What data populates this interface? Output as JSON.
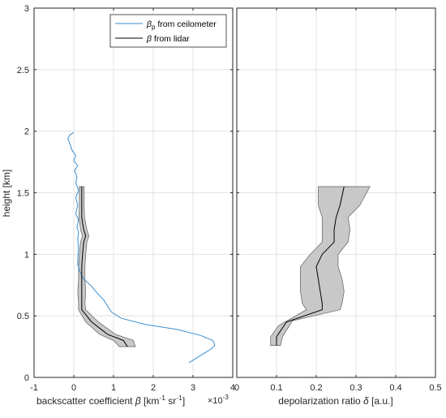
{
  "figure": {
    "y_label": "height [km]"
  },
  "chart_data": [
    {
      "type": "line",
      "xlabel": "backscatter coefficient β [km⁻¹ sr⁻¹]",
      "xlabel_parts": {
        "main": "backscatter coefficient ",
        "beta": "β",
        "units_open": " [km",
        "units_exp1": "-1",
        "units_mid": " sr",
        "units_exp2": "-1",
        "units_close": "]"
      },
      "x_exponent_label": "×10⁻³",
      "x_exponent_parts": {
        "base": "×10",
        "exp": "-3"
      },
      "ylabel": "height [km]",
      "xlim": [
        -1,
        4
      ],
      "ylim": [
        0,
        3
      ],
      "xticks": [
        -1,
        0,
        1,
        2,
        3,
        4
      ],
      "xtick_labels": [
        "-1",
        "0",
        "1",
        "2",
        "3",
        "4"
      ],
      "yticks": [
        0,
        0.5,
        1,
        1.5,
        2,
        2.5,
        3
      ],
      "ytick_labels": [
        "0",
        "0.5",
        "1",
        "1.5",
        "2",
        "2.5",
        "3"
      ],
      "grid": true,
      "legend_position": "top-right",
      "legend": [
        {
          "symbol": "β",
          "sub": "p",
          "label": " from ceilometer",
          "color": "#3b8fd1"
        },
        {
          "symbol": "β",
          "sub": "",
          "label": " from lidar",
          "color": "#000000"
        }
      ],
      "series": [
        {
          "name": "βp from ceilometer",
          "color": "#3b8fd1",
          "points": [
            [
              2.9,
              0.12
            ],
            [
              3.2,
              0.18
            ],
            [
              3.45,
              0.23
            ],
            [
              3.55,
              0.26
            ],
            [
              3.5,
              0.3
            ],
            [
              3.2,
              0.34
            ],
            [
              2.6,
              0.39
            ],
            [
              1.8,
              0.43
            ],
            [
              1.2,
              0.48
            ],
            [
              0.95,
              0.53
            ],
            [
              0.85,
              0.58
            ],
            [
              0.75,
              0.63
            ],
            [
              0.6,
              0.68
            ],
            [
              0.45,
              0.74
            ],
            [
              0.25,
              0.8
            ],
            [
              0.15,
              0.86
            ],
            [
              0.1,
              0.92
            ],
            [
              0.1,
              0.98
            ],
            [
              0.12,
              1.05
            ],
            [
              0.1,
              1.12
            ],
            [
              0.12,
              1.18
            ],
            [
              0.08,
              1.22
            ],
            [
              0.12,
              1.28
            ],
            [
              0.05,
              1.33
            ],
            [
              0.1,
              1.4
            ],
            [
              0.05,
              1.46
            ],
            [
              0.12,
              1.52
            ],
            [
              0.05,
              1.58
            ],
            [
              0.08,
              1.63
            ],
            [
              0.02,
              1.68
            ],
            [
              0.1,
              1.72
            ],
            [
              0.0,
              1.76
            ],
            [
              0.05,
              1.8
            ],
            [
              -0.05,
              1.85
            ],
            [
              -0.1,
              1.9
            ],
            [
              -0.15,
              1.94
            ],
            [
              -0.1,
              1.97
            ],
            [
              0.0,
              1.99
            ]
          ]
        },
        {
          "name": "β from lidar",
          "color": "#000000",
          "points": [
            [
              1.35,
              0.25
            ],
            [
              1.25,
              0.3
            ],
            [
              0.85,
              0.35
            ],
            [
              0.45,
              0.45
            ],
            [
              0.2,
              0.55
            ],
            [
              0.2,
              0.6
            ],
            [
              0.2,
              0.7
            ],
            [
              0.2,
              0.8
            ],
            [
              0.2,
              0.9
            ],
            [
              0.22,
              1.0
            ],
            [
              0.25,
              1.1
            ],
            [
              0.3,
              1.15
            ],
            [
              0.25,
              1.2
            ],
            [
              0.2,
              1.3
            ],
            [
              0.2,
              1.4
            ],
            [
              0.2,
              1.5
            ],
            [
              0.2,
              1.55
            ]
          ],
          "band_lower": [
            [
              1.15,
              0.25
            ],
            [
              1.0,
              0.3
            ],
            [
              0.65,
              0.35
            ],
            [
              0.3,
              0.45
            ],
            [
              0.12,
              0.55
            ],
            [
              0.12,
              0.6
            ],
            [
              0.1,
              0.7
            ],
            [
              0.12,
              0.8
            ],
            [
              0.12,
              0.9
            ],
            [
              0.14,
              1.0
            ],
            [
              0.17,
              1.1
            ],
            [
              0.22,
              1.15
            ],
            [
              0.17,
              1.2
            ],
            [
              0.13,
              1.3
            ],
            [
              0.14,
              1.4
            ],
            [
              0.14,
              1.5
            ],
            [
              0.14,
              1.55
            ]
          ],
          "band_upper": [
            [
              1.55,
              0.25
            ],
            [
              1.5,
              0.3
            ],
            [
              1.05,
              0.35
            ],
            [
              0.62,
              0.45
            ],
            [
              0.3,
              0.55
            ],
            [
              0.28,
              0.6
            ],
            [
              0.3,
              0.7
            ],
            [
              0.28,
              0.8
            ],
            [
              0.28,
              0.9
            ],
            [
              0.3,
              1.0
            ],
            [
              0.33,
              1.1
            ],
            [
              0.38,
              1.15
            ],
            [
              0.33,
              1.2
            ],
            [
              0.27,
              1.3
            ],
            [
              0.26,
              1.4
            ],
            [
              0.26,
              1.5
            ],
            [
              0.26,
              1.55
            ]
          ]
        }
      ]
    },
    {
      "type": "line",
      "xlabel": "depolarization ratio δ [a.u.]",
      "xlabel_parts": {
        "main": "depolarization ratio ",
        "delta": "δ",
        "units": " [a.u.]"
      },
      "xlim": [
        0,
        0.5
      ],
      "ylim": [
        0,
        3
      ],
      "xticks": [
        0,
        0.1,
        0.2,
        0.3,
        0.4,
        0.5
      ],
      "xtick_labels": [
        "0",
        "0.1",
        "0.2",
        "0.3",
        "0.4",
        "0.5"
      ],
      "yticks": [
        0,
        0.5,
        1,
        1.5,
        2,
        2.5,
        3
      ],
      "grid": true,
      "series": [
        {
          "name": "depolarization ratio",
          "color": "#000000",
          "points": [
            [
              0.1,
              0.26
            ],
            [
              0.1,
              0.33
            ],
            [
              0.125,
              0.45
            ],
            [
              0.215,
              0.55
            ],
            [
              0.215,
              0.6
            ],
            [
              0.21,
              0.7
            ],
            [
              0.205,
              0.8
            ],
            [
              0.2,
              0.9
            ],
            [
              0.215,
              1.0
            ],
            [
              0.245,
              1.1
            ],
            [
              0.245,
              1.2
            ],
            [
              0.25,
              1.3
            ],
            [
              0.26,
              1.4
            ],
            [
              0.27,
              1.55
            ]
          ],
          "band_lower": [
            [
              0.085,
              0.26
            ],
            [
              0.085,
              0.33
            ],
            [
              0.105,
              0.42
            ],
            [
              0.175,
              0.55
            ],
            [
              0.165,
              0.6
            ],
            [
              0.16,
              0.7
            ],
            [
              0.16,
              0.8
            ],
            [
              0.16,
              0.9
            ],
            [
              0.185,
              1.0
            ],
            [
              0.215,
              1.1
            ],
            [
              0.215,
              1.2
            ],
            [
              0.215,
              1.3
            ],
            [
              0.205,
              1.4
            ],
            [
              0.205,
              1.55
            ]
          ],
          "band_upper": [
            [
              0.11,
              0.26
            ],
            [
              0.115,
              0.33
            ],
            [
              0.14,
              0.46
            ],
            [
              0.26,
              0.55
            ],
            [
              0.265,
              0.6
            ],
            [
              0.27,
              0.7
            ],
            [
              0.265,
              0.8
            ],
            [
              0.255,
              0.9
            ],
            [
              0.255,
              1.0
            ],
            [
              0.28,
              1.1
            ],
            [
              0.285,
              1.2
            ],
            [
              0.28,
              1.3
            ],
            [
              0.31,
              1.4
            ],
            [
              0.335,
              1.55
            ]
          ]
        }
      ]
    }
  ]
}
